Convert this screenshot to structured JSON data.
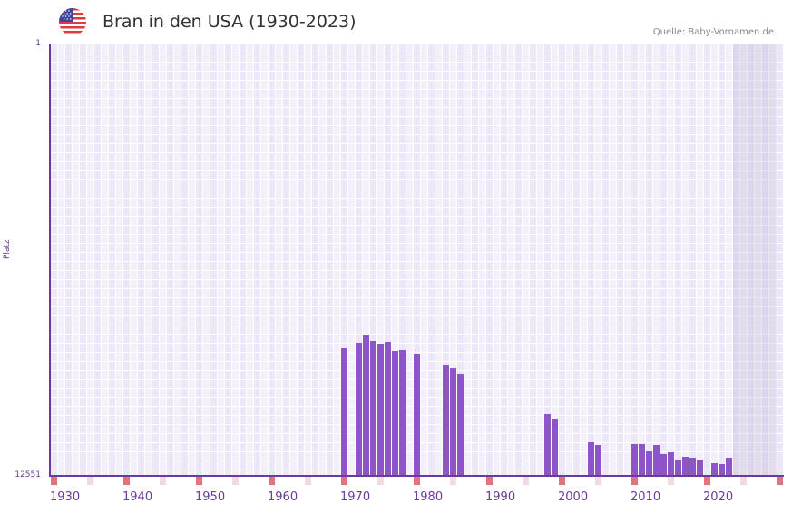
{
  "header": {
    "title": "Bran in den USA (1930-2023)",
    "source": "Quelle: Baby-Vornamen.de",
    "flag_icon": "usa-flag-icon"
  },
  "colors": {
    "bar": "#8e55c8",
    "axis": "#6b3a9a",
    "grid_light": "#f3effb",
    "grid_dark": "#ece6f8",
    "decade_marker": "#e5737b",
    "half_decade_marker": "#f3d9e2",
    "future_shade": "#e3dfec"
  },
  "chart_data": {
    "type": "bar",
    "title": "Bran in den USA (1930-2023)",
    "xlabel": "",
    "ylabel": "Platz",
    "y_inverted": true,
    "ylim": [
      1,
      12551
    ],
    "xlim": [
      1930,
      2030
    ],
    "x_ticks": [
      "1930",
      "1940",
      "1950",
      "1960",
      "1970",
      "1980",
      "1990",
      "2000",
      "2010",
      "2020"
    ],
    "y_ticks": [
      "1",
      "12551"
    ],
    "grid": true,
    "legend": null,
    "categories": [
      1970,
      1972,
      1973,
      1974,
      1975,
      1976,
      1977,
      1978,
      1980,
      1984,
      1985,
      1986,
      1998,
      1999,
      2004,
      2005,
      2010,
      2011,
      2012,
      2013,
      2014,
      2015,
      2016,
      2017,
      2018,
      2019,
      2021,
      2022,
      2023
    ],
    "values": [
      8841,
      8683,
      8473,
      8631,
      8736,
      8657,
      8920,
      8894,
      9025,
      9341,
      9420,
      9604,
      10762,
      10893,
      11577,
      11656,
      11630,
      11630,
      11841,
      11656,
      11920,
      11867,
      12077,
      11998,
      12024,
      12077,
      12182,
      12209,
      12024
    ]
  }
}
